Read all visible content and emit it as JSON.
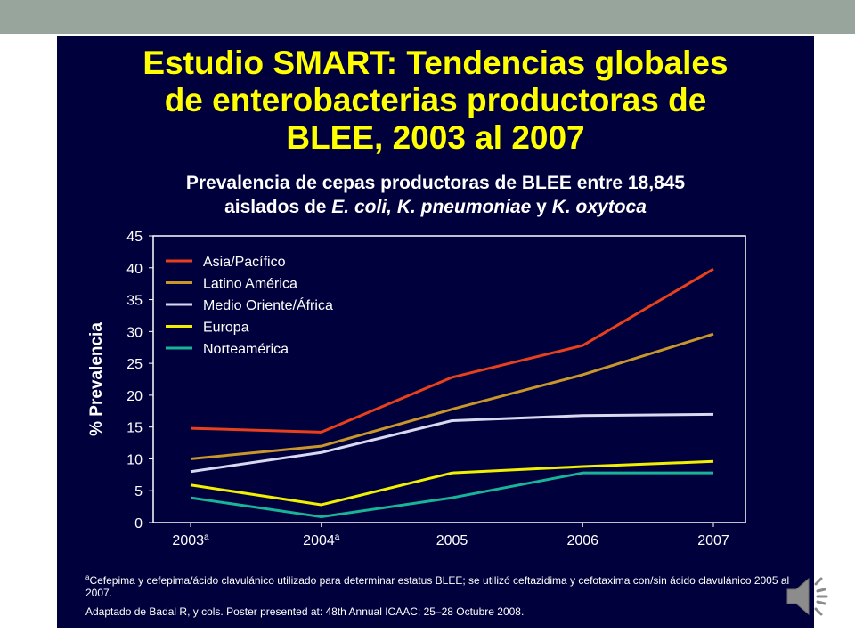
{
  "slide": {
    "title_lines": [
      "Estudio SMART: Tendencias globales",
      "de enterobacterias productoras de",
      "BLEE, 2003 al 2007"
    ],
    "subtitle_line1": "Prevalencia de cepas productoras de BLEE entre 18,845",
    "subtitle_line2_prefix": "aislados de ",
    "subtitle_species1": "E. coli, K. pneumoniae",
    "subtitle_connector": " y ",
    "subtitle_species2": "K. oxytoca",
    "footnote_marker": "a",
    "footnote_text": "Cefepima y cefepima/ácido clavulánico utilizado para determinar estatus BLEE;  se utilizó ceftazidima y cefotaxima con/sin ácido clavulánico 2005 al 2007.",
    "source": "Adaptado de Badal R, y cols. Poster presented at: 48th Annual ICAAC; 25–28 Octubre 2008.",
    "speaker_icon": "speaker-icon"
  },
  "chart_data": {
    "type": "line",
    "title": "Prevalencia de cepas productoras de BLEE entre 18,845 aislados de E. coli, K. pneumoniae y K. oxytoca",
    "ylabel": "% Prevalencia",
    "xlabel": "",
    "categories": [
      "2003",
      "2004",
      "2005",
      "2006",
      "2007"
    ],
    "category_superscripts": [
      "a",
      "a",
      "",
      "",
      ""
    ],
    "ylim": [
      0,
      45
    ],
    "yticks": [
      0,
      5,
      10,
      15,
      20,
      25,
      30,
      35,
      40,
      45
    ],
    "grid": false,
    "legend_position": "top-left",
    "series": [
      {
        "name": "Asia/Pacífico",
        "color": "#e8401c",
        "values": [
          14.8,
          14.2,
          22.8,
          27.8,
          39.8
        ]
      },
      {
        "name": "Latino América",
        "color": "#c8962a",
        "values": [
          10,
          12,
          17.8,
          23.2,
          29.6
        ]
      },
      {
        "name": "Medio Oriente/África",
        "color": "#d8d8f0",
        "values": [
          8,
          11,
          16,
          16.8,
          17
        ]
      },
      {
        "name": "Europa",
        "color": "#f0f000",
        "values": [
          5.9,
          2.8,
          7.8,
          8.8,
          9.6
        ]
      },
      {
        "name": "Norteamérica",
        "color": "#19b497",
        "values": [
          3.9,
          0.9,
          3.9,
          7.8,
          7.8
        ]
      }
    ]
  }
}
